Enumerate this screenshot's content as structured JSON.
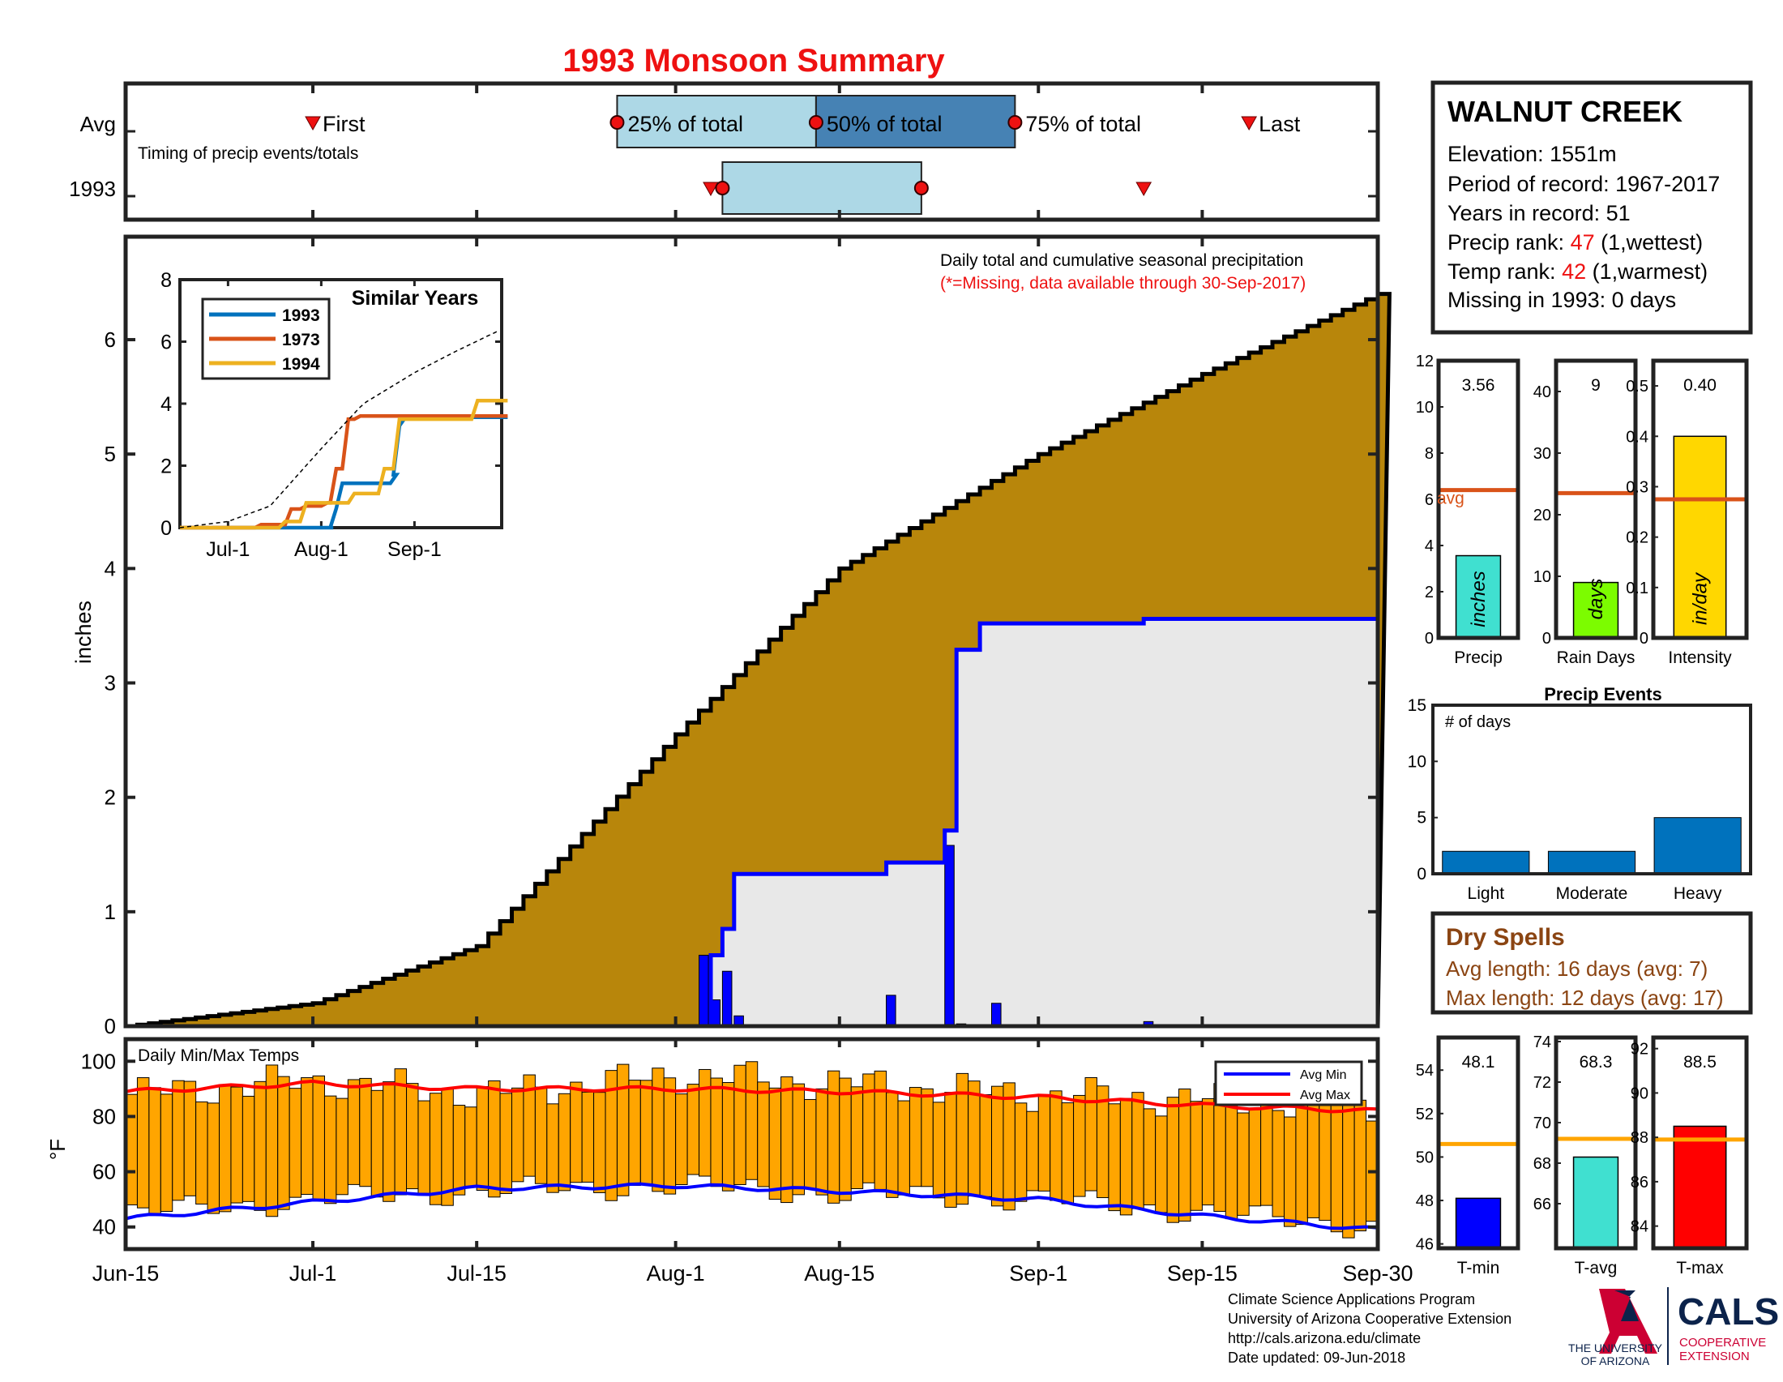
{
  "title": "1993 Monsoon Summary",
  "timing": {
    "caption": "Timing of precip events/totals",
    "row_avg": "Avg",
    "row_year": "1993",
    "first_label": "First",
    "q25_label": "25% of total",
    "q50_label": "50% of total",
    "q75_label": "75% of total",
    "last_label": "Last",
    "avg": {
      "first": "2017-07-01",
      "q25": "2017-07-27",
      "q50": "2017-08-13",
      "q75": "2017-08-30",
      "last": "2017-09-19"
    },
    "year": {
      "first": "2017-08-04",
      "q25": "2017-08-05",
      "q50": "2017-08-22",
      "last": "2017-09-10"
    }
  },
  "main": {
    "caption": "Daily total and cumulative seasonal precipitation",
    "missing_note": "(*=Missing, data available through 30-Sep-2017)",
    "ylabel": "inches"
  },
  "inset": {
    "title": "Similar Years",
    "legend": [
      {
        "name": "1993",
        "color": "#0072bd"
      },
      {
        "name": "1973",
        "color": "#d95319"
      },
      {
        "name": "1994",
        "color": "#edb120"
      }
    ],
    "xticks": [
      "Jul-1",
      "Aug-1",
      "Sep-1"
    ],
    "yticks": [
      "0",
      "2",
      "4",
      "6",
      "8"
    ]
  },
  "station": {
    "name": "WALNUT CREEK",
    "elevation": "Elevation: 1551m",
    "period": "Period of record: 1967-2017",
    "years": "Years in record: 51",
    "precip_rank_label": "Precip rank: ",
    "precip_rank_value": "47",
    "precip_rank_suffix": " (1,wettest)",
    "temp_rank_label": "Temp rank: ",
    "temp_rank_value": "42",
    "temp_rank_suffix": " (1,warmest)",
    "missing": "Missing in 1993: 0 days"
  },
  "stat_bars": {
    "precip": {
      "label": "Precip",
      "unit": "inches",
      "value_text": "3.56",
      "value": 3.56,
      "avg": 6.4,
      "ymax": 12,
      "yticks": [
        "0",
        "2",
        "4",
        "6",
        "8",
        "10",
        "12"
      ],
      "color": "#40e0d0",
      "avg_label": "avg"
    },
    "rain_days": {
      "label": "Rain Days",
      "unit": "days",
      "value_text": "9",
      "value": 9,
      "avg": 23.5,
      "ymax": 45,
      "yticks": [
        "0",
        "10",
        "20",
        "30",
        "40"
      ],
      "color": "#7cfc00"
    },
    "intensity": {
      "label": "Intensity",
      "unit": "in/day",
      "value_text": "0.40",
      "value": 0.4,
      "avg": 0.275,
      "ymax": 0.55,
      "yticks": [
        "0",
        "0.1",
        "0.2",
        "0.3",
        "0.4",
        "0.5"
      ],
      "color": "#ffd700"
    }
  },
  "events": {
    "title": "Precip Events",
    "ylabel": "# of days",
    "yticks": [
      "0",
      "5",
      "10",
      "15"
    ],
    "categories": [
      "Light",
      "Moderate",
      "Heavy"
    ],
    "values": [
      2,
      2,
      5
    ]
  },
  "dry_spells": {
    "title": "Dry Spells",
    "avg_length": "Avg length: 16 days (avg: 7)",
    "max_length": "Max length: 12 days (avg: 17)"
  },
  "temps": {
    "caption": "Daily Min/Max Temps",
    "ylabel": "°F",
    "yticks": [
      "40",
      "60",
      "80",
      "100"
    ],
    "legend_min": "Avg Min",
    "legend_max": "Avg Max"
  },
  "temp_bars": {
    "tmin": {
      "label": "T-min",
      "value_text": "48.1",
      "value": 48.1,
      "avg": 50.6,
      "ymin": 45.8,
      "ymax": 55.5,
      "yticks": [
        "46",
        "48",
        "50",
        "52",
        "54"
      ],
      "color": "#0000ff"
    },
    "tavg": {
      "label": "T-avg",
      "value_text": "68.3",
      "value": 68.3,
      "avg": 69.2,
      "ymin": 63.8,
      "ymax": 74.2,
      "yticks": [
        "66",
        "68",
        "70",
        "72",
        "74"
      ],
      "color": "#40e0d0"
    },
    "tmax": {
      "label": "T-max",
      "value_text": "88.5",
      "value": 88.5,
      "avg": 87.9,
      "ymin": 83,
      "ymax": 92.5,
      "yticks": [
        "84",
        "86",
        "88",
        "90",
        "92"
      ],
      "color": "#ff0000"
    }
  },
  "xaxis": {
    "ticks": [
      "Jun-15",
      "Jul-1",
      "Jul-15",
      "Aug-1",
      "Aug-15",
      "Sep-1",
      "Sep-15",
      "Sep-30"
    ]
  },
  "footer": {
    "line1": "Climate Science Applications Program",
    "line2": "University of Arizona Cooperative Extension",
    "line3": "http://cals.arizona.edu/climate",
    "line4": " Date updated: 09-Jun-2018",
    "ua_line1": "THE UNIVERSITY",
    "ua_line2": "OF ARIZONA",
    "cals": "CALS",
    "cals_sub1": "COOPERATIVE",
    "cals_sub2": "EXTENSION"
  },
  "chart_data": [
    {
      "type": "area",
      "title": "Daily total and cumulative seasonal precipitation",
      "ylabel": "inches",
      "ylim": [
        0,
        6.9
      ],
      "x_range": [
        "2017-06-15",
        "2017-09-30"
      ],
      "series": [
        {
          "name": "",
          "kind": "area",
          "x": [
            "2017-06-15",
            "2017-07-01",
            "2017-07-15",
            "2017-08-01",
            "2017-08-15",
            "2017-09-01",
            "2017-09-15",
            "2017-09-30"
          ],
          "values": [
            0.0,
            0.2,
            0.7,
            2.55,
            4.0,
            5.0,
            5.7,
            6.4
          ]
        },
        {
          "name": "1993",
          "kind": "step",
          "x": [
            "2017-06-15",
            "2017-08-03",
            "2017-08-04",
            "2017-08-05",
            "2017-08-06",
            "2017-08-19",
            "2017-08-24",
            "2017-08-25",
            "2017-08-27",
            "2017-09-10",
            "2017-09-30"
          ],
          "values": [
            0.0,
            0.0,
            0.62,
            0.85,
            1.33,
            1.43,
            1.71,
            3.29,
            3.52,
            3.56,
            3.56
          ]
        },
        {
          "name": "1993 daily",
          "kind": "bar",
          "x": [
            "2017-08-03",
            "2017-08-04",
            "2017-08-05",
            "2017-08-06",
            "2017-08-19",
            "2017-08-24",
            "2017-08-25",
            "2017-08-28",
            "2017-09-10"
          ],
          "values": [
            0.62,
            0.23,
            0.48,
            0.09,
            0.27,
            1.58,
            0.02,
            0.2,
            0.04
          ]
        }
      ]
    },
    {
      "type": "line",
      "title": "Similar Years",
      "x_range": [
        "2017-06-15",
        "2017-09-30"
      ],
      "ylim": [
        0,
        8
      ],
      "series": [
        {
          "name": "1993",
          "color": "#0072bd",
          "x": [
            "2017-06-15",
            "2017-08-03",
            "2017-08-04",
            "2017-08-06",
            "2017-08-19",
            "2017-08-24",
            "2017-08-25",
            "2017-08-27",
            "2017-09-30"
          ],
          "values": [
            0,
            0,
            0.62,
            1.43,
            1.43,
            1.71,
            3.29,
            3.56,
            3.56
          ]
        },
        {
          "name": "1973",
          "color": "#d95319",
          "x": [
            "2017-06-15",
            "2017-07-10",
            "2017-07-20",
            "2017-07-25",
            "2017-08-01",
            "2017-08-04",
            "2017-08-08",
            "2017-08-12",
            "2017-09-30"
          ],
          "values": [
            0,
            0.1,
            0.6,
            0.7,
            0.8,
            1.9,
            3.5,
            3.6,
            3.6
          ]
        },
        {
          "name": "1994",
          "color": "#edb120",
          "x": [
            "2017-06-15",
            "2017-07-18",
            "2017-07-25",
            "2017-08-10",
            "2017-08-20",
            "2017-08-25",
            "2017-09-20",
            "2017-09-30"
          ],
          "values": [
            0,
            0.2,
            0.8,
            1.1,
            1.9,
            3.5,
            4.1,
            4.1
          ]
        },
        {
          "name": "",
          "kind": "dashed-average",
          "x": [
            "2017-06-15",
            "2017-07-01",
            "2017-07-15",
            "2017-08-01",
            "2017-08-15",
            "2017-09-01",
            "2017-09-15",
            "2017-09-30"
          ],
          "values": [
            0.0,
            0.2,
            0.7,
            2.55,
            4.0,
            5.0,
            5.7,
            6.4
          ]
        }
      ]
    },
    {
      "type": "bar",
      "title": "Daily Min/Max Temps",
      "ylabel": "°F",
      "ylim": [
        32,
        108
      ],
      "x_range": [
        "2017-06-15",
        "2017-09-30"
      ],
      "series": [
        {
          "name": "",
          "kind": "floating-bar",
          "x": [
            "2017-06-15",
            "2017-07-01",
            "2017-07-15",
            "2017-08-01",
            "2017-08-15",
            "2017-09-01",
            "2017-09-15",
            "2017-09-30"
          ],
          "min": [
            45,
            50,
            53,
            55,
            52,
            50,
            45,
            40
          ],
          "max": [
            88,
            93,
            88,
            95,
            92,
            88,
            86,
            84
          ]
        },
        {
          "name": "Avg Min",
          "color": "#0000ff",
          "x": [
            "2017-06-15",
            "2017-07-01",
            "2017-07-15",
            "2017-08-01",
            "2017-08-15",
            "2017-09-01",
            "2017-09-15",
            "2017-09-30"
          ],
          "values": [
            43,
            49,
            54,
            55,
            53,
            50,
            44,
            39
          ]
        },
        {
          "name": "Avg Max",
          "color": "#ff0000",
          "x": [
            "2017-06-15",
            "2017-07-01",
            "2017-07-15",
            "2017-08-01",
            "2017-08-15",
            "2017-09-01",
            "2017-09-15",
            "2017-09-30"
          ],
          "values": [
            89,
            92,
            90,
            90,
            89,
            87,
            84,
            82
          ]
        }
      ]
    },
    {
      "type": "bar",
      "title": "Precip Events",
      "ylabel": "# of days",
      "ylim": [
        0,
        15
      ],
      "categories": [
        "Light",
        "Moderate",
        "Heavy"
      ],
      "values": [
        2,
        2,
        5
      ]
    }
  ]
}
